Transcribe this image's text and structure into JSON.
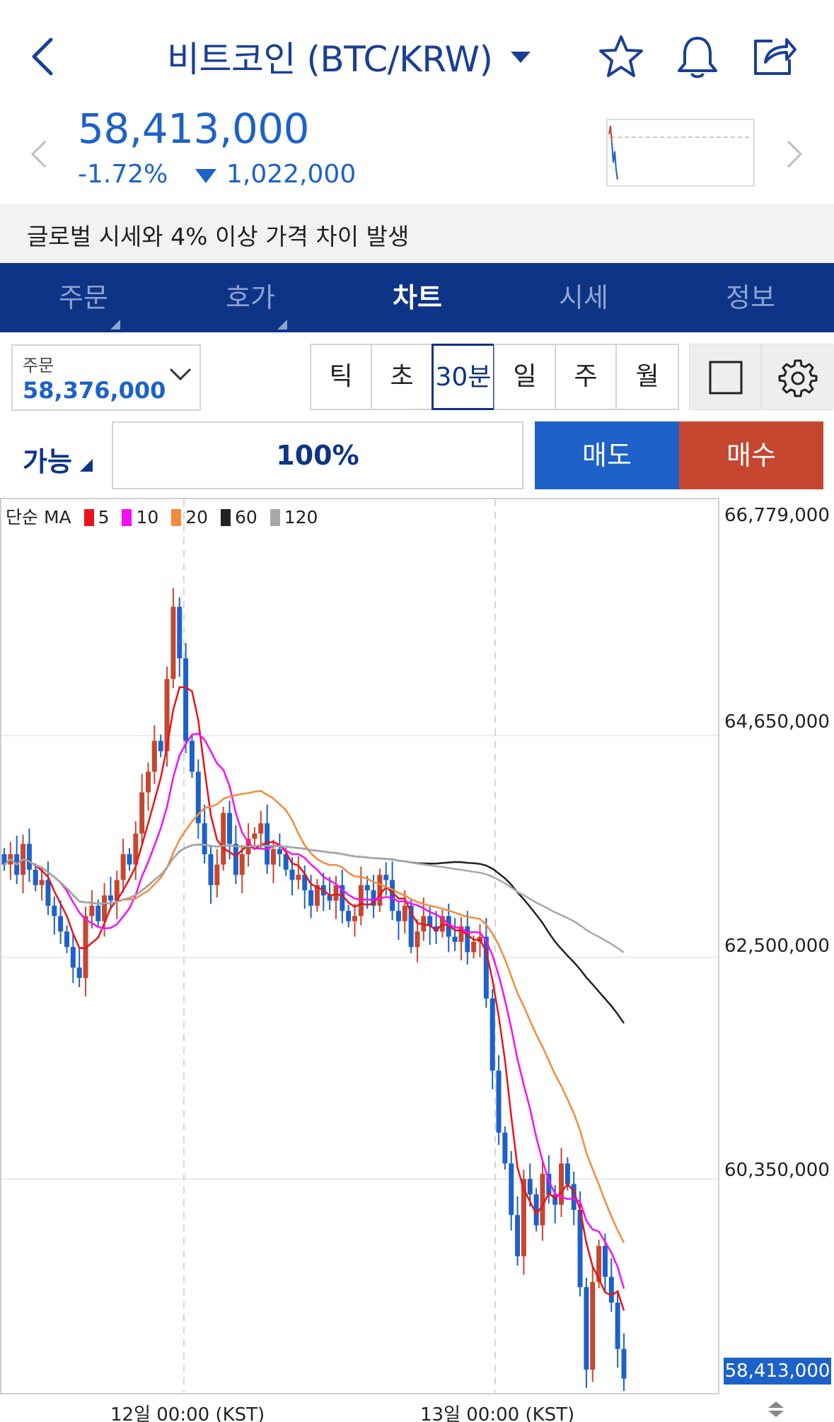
{
  "header": {
    "title": "비트코인 (BTC/KRW)"
  },
  "ticker": {
    "price": "58,413,000",
    "change_pct": "-1.72%",
    "change_amount": "1,022,000"
  },
  "notice": "글로벌 시세와 4% 이상 가격 차이 발생",
  "tabs": [
    {
      "label": "주문"
    },
    {
      "label": "호가"
    },
    {
      "label": "차트"
    },
    {
      "label": "시세"
    },
    {
      "label": "정보"
    }
  ],
  "order": {
    "label": "주문",
    "value": "58,376,000"
  },
  "intervals": [
    "틱",
    "초",
    "30분",
    "일",
    "주",
    "월"
  ],
  "active_interval": "30분",
  "available": "가능",
  "percent": "100%",
  "sell": "매도",
  "buy": "매수",
  "ma_legend": {
    "prefix": "단순 MA",
    "items": [
      {
        "label": "5",
        "color": "#e8141a"
      },
      {
        "label": "10",
        "color": "#f50ff5"
      },
      {
        "label": "20",
        "color": "#f58a3c"
      },
      {
        "label": "60",
        "color": "#222222"
      },
      {
        "label": "120",
        "color": "#a8a8a8"
      }
    ]
  },
  "colors": {
    "brand": "#0d3486",
    "down": "#1d61c9",
    "up": "#c64730"
  },
  "chart_data": {
    "type": "candlestick",
    "y_tick_labels": [
      "66,779,000",
      "64,650,000",
      "62,500,000",
      "60,350,000"
    ],
    "ylim": [
      58280000,
      66779000
    ],
    "x_tick_labels": [
      "12일 00:00 (KST)",
      "13일 00:00 (KST)"
    ],
    "current_price_label": "58,413,000",
    "series_closes": [
      63400000,
      63500000,
      63300000,
      63600000,
      63350000,
      63200000,
      63250000,
      63000000,
      62900000,
      62750000,
      62600000,
      62400000,
      62300000,
      62900000,
      63000000,
      62850000,
      63100000,
      63050000,
      63250000,
      63500000,
      63400000,
      63700000,
      64100000,
      64300000,
      64600000,
      64500000,
      65200000,
      65900000,
      65400000,
      64600000,
      64300000,
      63800000,
      63500000,
      63200000,
      63400000,
      63900000,
      63600000,
      63300000,
      63500000,
      63650000,
      63700000,
      63800000,
      63400000,
      63550000,
      63500000,
      63350000,
      63250000,
      63300000,
      63150000,
      63000000,
      63200000,
      63100000,
      63050000,
      63200000,
      62950000,
      62850000,
      62900000,
      63200000,
      63150000,
      63000000,
      63300000,
      63250000,
      62950000,
      62850000,
      63000000,
      62600000,
      62750000,
      62900000,
      62800000,
      62750000,
      62900000,
      62700000,
      62650000,
      62800000,
      62550000,
      62650000,
      62700000,
      62100000,
      61400000,
      60800000,
      60500000,
      60000000,
      59600000,
      60350000,
      60200000,
      59900000,
      60400000,
      60200000,
      60100000,
      60500000,
      60300000,
      60050000,
      59300000,
      58500000,
      59350000,
      59700000,
      59400000,
      59150000,
      58700000,
      58413000
    ]
  }
}
